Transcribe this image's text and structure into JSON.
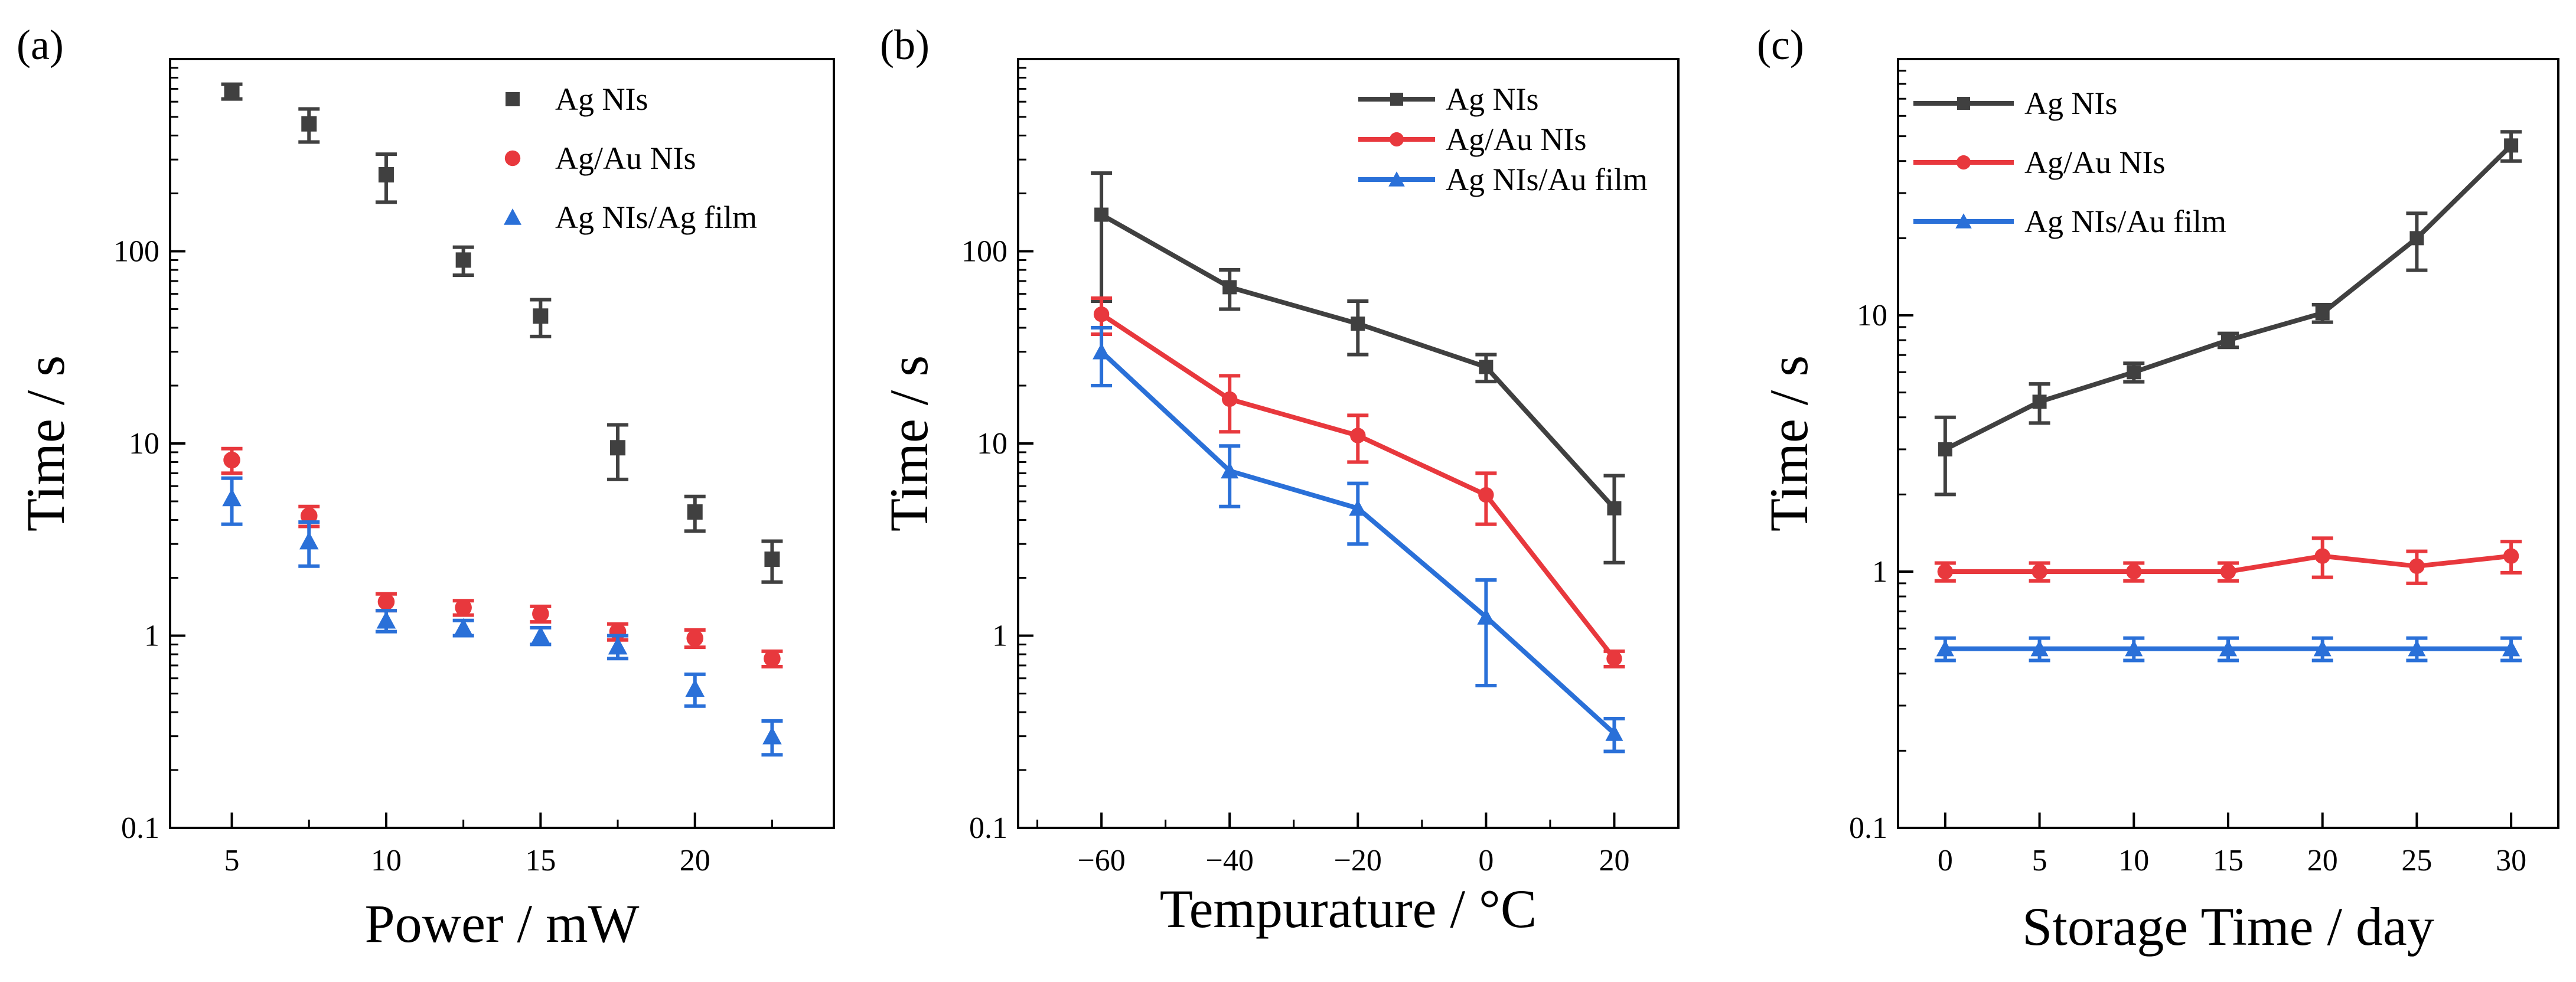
{
  "chart_data": [
    {
      "panel_label": "(a)",
      "type": "scatter",
      "xlabel": "Power / mW",
      "ylabel": "Time / s",
      "xscale": "linear",
      "yscale": "log",
      "xlim": [
        3,
        24.5
      ],
      "ylim": [
        0.1,
        1000
      ],
      "x_ticks": [
        5,
        10,
        15,
        20
      ],
      "x_tick_labels": [
        "5",
        "10",
        "15",
        "20"
      ],
      "x_minor_ticks": [
        7.5,
        12.5,
        17.5,
        22.5
      ],
      "y_ticks": [
        0.1,
        1,
        10,
        100
      ],
      "y_tick_labels": [
        "0.1",
        "1",
        "10",
        "100"
      ],
      "legend_position": "top-right",
      "connect_lines": false,
      "x": [
        5,
        7.5,
        10,
        12.5,
        15,
        17.5,
        20,
        22.5
      ],
      "series": [
        {
          "name": "Ag NIs",
          "color": "#404040",
          "marker": "square",
          "values": [
            680,
            460,
            250,
            90,
            46,
            9.5,
            4.4,
            2.5
          ],
          "err": [
            60,
            90,
            70,
            15,
            10,
            3,
            0.9,
            0.6
          ]
        },
        {
          "name": "Ag/Au NIs",
          "color": "#e8383d",
          "marker": "circle",
          "values": [
            8.2,
            4.2,
            1.5,
            1.4,
            1.3,
            1.05,
            0.97,
            0.76
          ],
          "err": [
            1.2,
            0.5,
            0.15,
            0.12,
            0.12,
            0.1,
            0.1,
            0.07
          ]
        },
        {
          "name": "Ag NIs/Ag film",
          "color": "#2a70d8",
          "marker": "triangle",
          "values": [
            5.2,
            3.1,
            1.2,
            1.1,
            1.0,
            0.88,
            0.53,
            0.3
          ],
          "err": [
            1.4,
            0.8,
            0.15,
            0.1,
            0.1,
            0.12,
            0.1,
            0.06
          ]
        }
      ]
    },
    {
      "panel_label": "(b)",
      "type": "line",
      "xlabel": "Tempurature / °C",
      "ylabel": "Time / s",
      "xscale": "linear",
      "yscale": "log",
      "xlim": [
        -73,
        30
      ],
      "ylim": [
        0.1,
        1000
      ],
      "x_ticks": [
        -60,
        -40,
        -20,
        0,
        20
      ],
      "x_tick_labels": [
        "−60",
        "−40",
        "−20",
        "0",
        "20"
      ],
      "x_minor_ticks": [
        -70,
        -50,
        -30,
        -10,
        10
      ],
      "y_ticks": [
        0.1,
        1,
        10,
        100
      ],
      "y_tick_labels": [
        "0.1",
        "1",
        "10",
        "100"
      ],
      "legend_position": "top-right",
      "connect_lines": true,
      "x": [
        -60,
        -40,
        -20,
        0,
        20
      ],
      "series": [
        {
          "name": "Ag NIs",
          "color": "#404040",
          "marker": "square",
          "values": [
            155,
            65,
            42,
            25,
            4.6
          ],
          "err": [
            100,
            15,
            13,
            4,
            2.2
          ]
        },
        {
          "name": "Ag/Au NIs",
          "color": "#e8383d",
          "marker": "circle",
          "values": [
            47,
            17,
            11,
            5.4,
            0.76
          ],
          "err": [
            10,
            5.5,
            3,
            1.6,
            0.07
          ]
        },
        {
          "name": "Ag NIs/Au film",
          "color": "#2a70d8",
          "marker": "triangle",
          "values": [
            30,
            7.2,
            4.6,
            1.25,
            0.31
          ],
          "err": [
            10,
            2.5,
            1.6,
            0.7,
            0.06
          ]
        }
      ]
    },
    {
      "panel_label": "(c)",
      "type": "line",
      "xlabel": "Storage Time / day",
      "ylabel": "Time / s",
      "xscale": "linear",
      "yscale": "log",
      "xlim": [
        -2.5,
        32.5
      ],
      "ylim": [
        0.1,
        100
      ],
      "x_ticks": [
        0,
        5,
        10,
        15,
        20,
        25,
        30
      ],
      "x_tick_labels": [
        "0",
        "5",
        "10",
        "15",
        "20",
        "25",
        "30"
      ],
      "x_minor_ticks": [],
      "y_ticks": [
        0.1,
        1,
        10
      ],
      "y_tick_labels": [
        "0.1",
        "1",
        "10"
      ],
      "legend_position": "top-left",
      "connect_lines": true,
      "x": [
        0,
        5,
        10,
        15,
        20,
        25,
        30
      ],
      "series": [
        {
          "name": "Ag NIs",
          "color": "#404040",
          "marker": "square",
          "values": [
            3.0,
            4.6,
            6.0,
            8.0,
            10.2,
            20,
            46
          ],
          "err": [
            1.0,
            0.8,
            0.5,
            0.5,
            0.8,
            5,
            6
          ]
        },
        {
          "name": "Ag/Au NIs",
          "color": "#e8383d",
          "marker": "circle",
          "values": [
            1.0,
            1.0,
            1.0,
            1.0,
            1.15,
            1.05,
            1.15
          ],
          "err": [
            0.08,
            0.08,
            0.08,
            0.08,
            0.2,
            0.15,
            0.16
          ]
        },
        {
          "name": "Ag NIs/Au film",
          "color": "#2a70d8",
          "marker": "triangle",
          "values": [
            0.5,
            0.5,
            0.5,
            0.5,
            0.5,
            0.5,
            0.5
          ],
          "err": [
            0.05,
            0.05,
            0.05,
            0.05,
            0.05,
            0.05,
            0.05
          ]
        }
      ]
    }
  ]
}
